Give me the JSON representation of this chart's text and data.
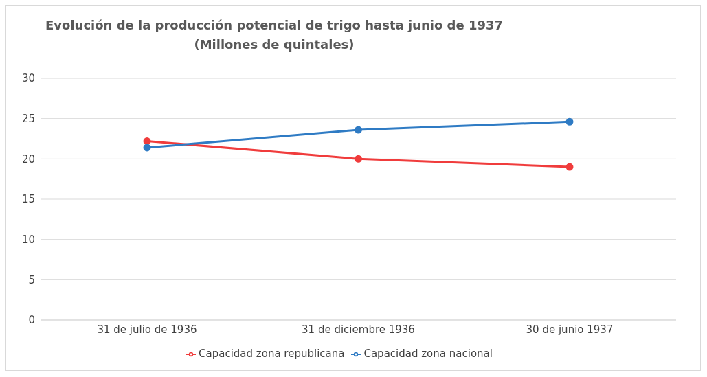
{
  "chart_data": {
    "type": "line",
    "title": "Evolución de la producción potencial de trigo hasta junio de 1937",
    "subtitle": "(Millones de quintales)",
    "categories": [
      "31 de julio de 1936",
      "31 de diciembre 1936",
      "30 de junio 1937"
    ],
    "series": [
      {
        "name": "Capacidad zona republicana",
        "color": "#f03c3c",
        "values": [
          22.2,
          20,
          19
        ]
      },
      {
        "name": "Capacidad zona nacional",
        "color": "#2f7bc4",
        "values": [
          21.4,
          23.6,
          24.6
        ]
      }
    ],
    "ylim": [
      0,
      30
    ],
    "yticks": [
      0,
      5,
      10,
      15,
      20,
      25,
      30
    ],
    "grid": "y",
    "legend": "bottom",
    "marker": "circle",
    "line_style": "solid"
  }
}
